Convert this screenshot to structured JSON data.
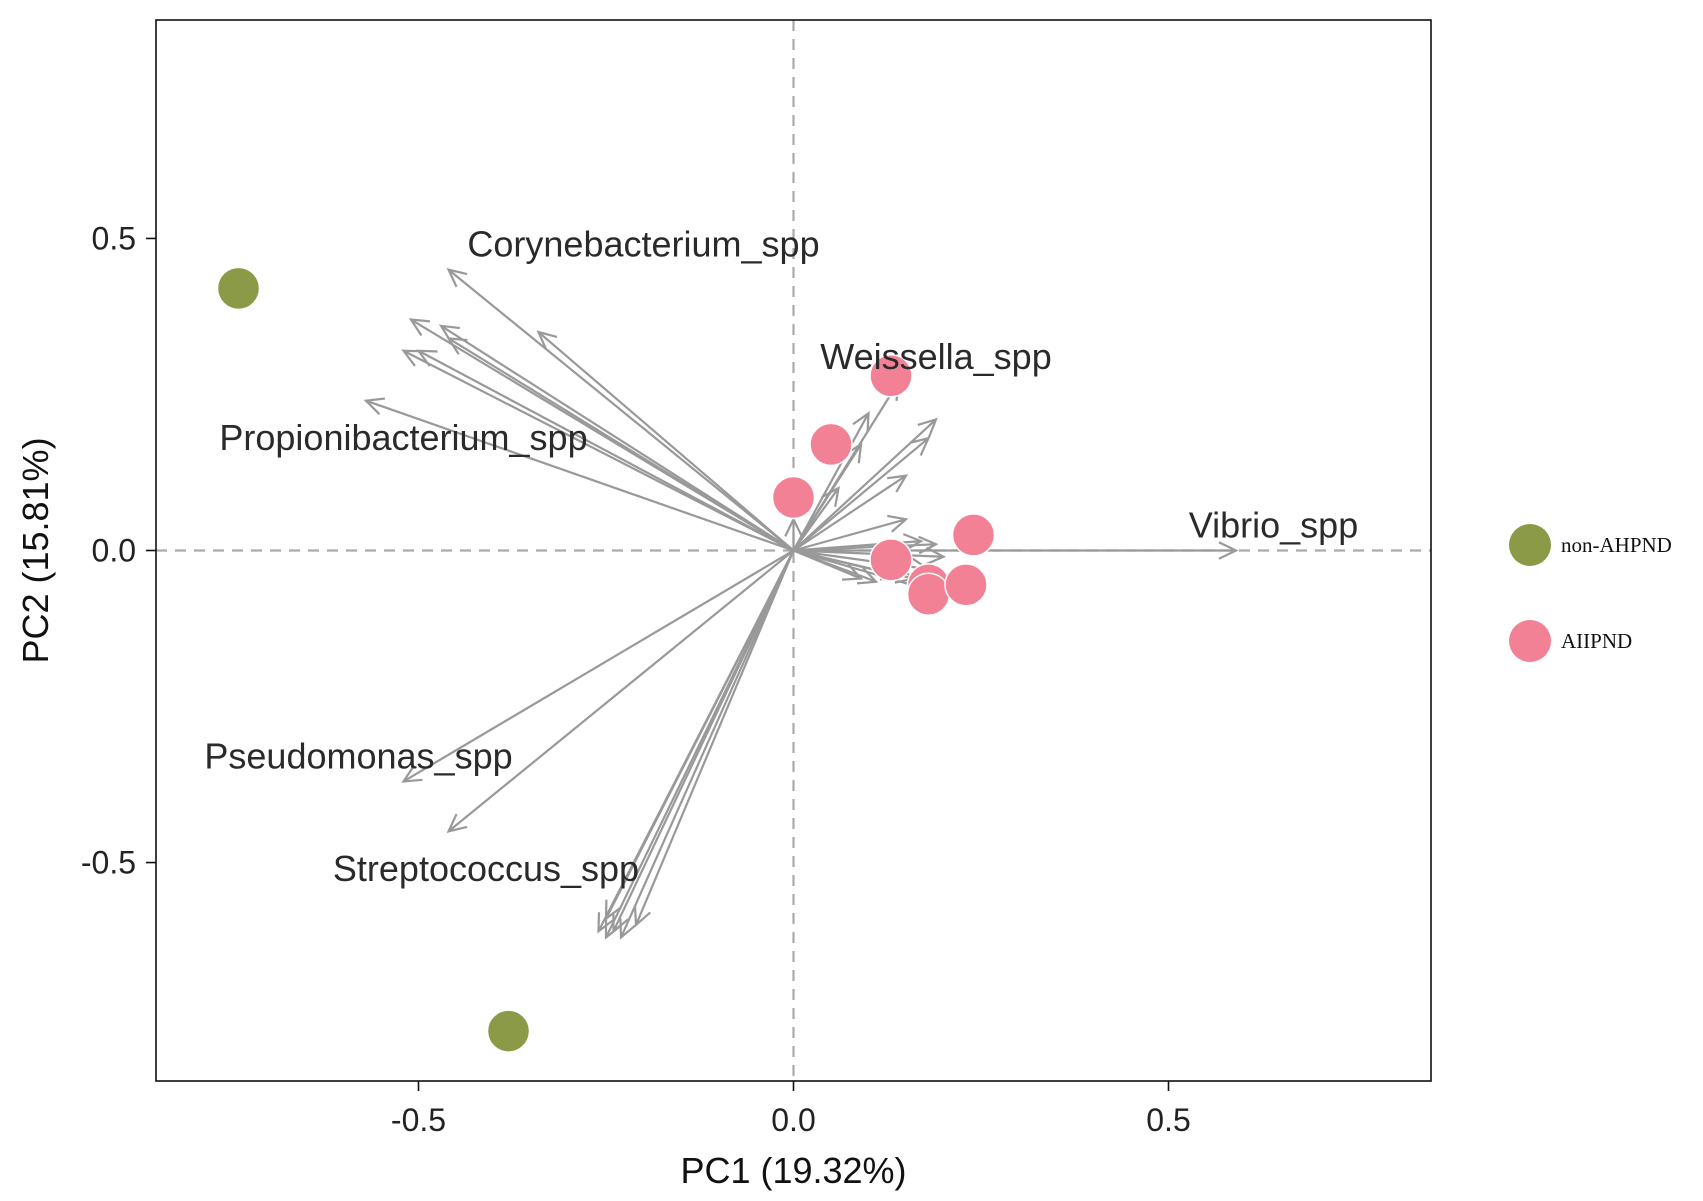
{
  "chart_data": {
    "type": "scatter",
    "subtype": "pca-biplot",
    "title": "",
    "xlabel": "PC1 (19.32%)",
    "ylabel": "PC2 (15.81%)",
    "xlim": [
      -0.85,
      0.85
    ],
    "ylim": [
      -0.85,
      0.85
    ],
    "xticks": [
      {
        "value": -0.5,
        "label": "-0.5"
      },
      {
        "value": 0.0,
        "label": "0.0"
      },
      {
        "value": 0.5,
        "label": "0.5"
      }
    ],
    "yticks": [
      {
        "value": 0.5,
        "label": "0.5"
      },
      {
        "value": 0.0,
        "label": "0.0"
      },
      {
        "value": -0.5,
        "label": "-0.5"
      }
    ],
    "grid": false,
    "reference_lines": [
      0,
      0
    ],
    "legend_position": "right",
    "groups": [
      {
        "name": "non-AHPND",
        "color": "#8b9a46",
        "points": [
          [
            -0.74,
            0.42
          ],
          [
            -0.38,
            -0.77
          ]
        ]
      },
      {
        "name": "AIIPND",
        "color": "#f28196",
        "points": [
          [
            0.13,
            0.28
          ],
          [
            0.05,
            0.17
          ],
          [
            0.0,
            0.085
          ],
          [
            0.24,
            0.025
          ],
          [
            0.13,
            -0.015
          ],
          [
            0.18,
            -0.055
          ],
          [
            0.18,
            -0.07
          ],
          [
            0.23,
            -0.055
          ]
        ]
      }
    ],
    "loadings": [
      {
        "name": "Corynebacterium_spp",
        "x": -0.46,
        "y": 0.45,
        "label_x": -0.2,
        "label_y": 0.49
      },
      {
        "name": "Weissella_spp",
        "x": 0.14,
        "y": 0.27,
        "label_x": 0.19,
        "label_y": 0.31
      },
      {
        "name": "Propionibacterium_spp",
        "x": -0.57,
        "y": 0.24,
        "label_x": -0.52,
        "label_y": 0.18
      },
      {
        "name": "Vibrio_spp",
        "x": 0.59,
        "y": 0.0,
        "label_x": 0.64,
        "label_y": 0.04
      },
      {
        "name": "Pseudomonas_spp",
        "x": -0.52,
        "y": -0.37,
        "label_x": -0.58,
        "label_y": -0.33
      },
      {
        "name": "Streptococcus_spp",
        "x": -0.46,
        "y": -0.45,
        "label_x": -0.41,
        "label_y": -0.51
      },
      {
        "name": "",
        "x": -0.51,
        "y": 0.37
      },
      {
        "name": "",
        "x": -0.47,
        "y": 0.36
      },
      {
        "name": "",
        "x": -0.52,
        "y": 0.32
      },
      {
        "name": "",
        "x": -0.5,
        "y": 0.32
      },
      {
        "name": "",
        "x": -0.46,
        "y": 0.34
      },
      {
        "name": "",
        "x": -0.34,
        "y": 0.35
      },
      {
        "name": "",
        "x": -0.26,
        "y": -0.61
      },
      {
        "name": "",
        "x": -0.25,
        "y": -0.62
      },
      {
        "name": "",
        "x": -0.24,
        "y": -0.61
      },
      {
        "name": "",
        "x": -0.23,
        "y": -0.62
      },
      {
        "name": "",
        "x": -0.21,
        "y": -0.6
      },
      {
        "name": "",
        "x": -0.25,
        "y": -0.59
      },
      {
        "name": "",
        "x": 0.1,
        "y": 0.22
      },
      {
        "name": "",
        "x": 0.19,
        "y": 0.21
      },
      {
        "name": "",
        "x": 0.18,
        "y": 0.18
      },
      {
        "name": "",
        "x": 0.15,
        "y": 0.12
      },
      {
        "name": "",
        "x": 0.09,
        "y": 0.17
      },
      {
        "name": "",
        "x": 0.06,
        "y": 0.1
      },
      {
        "name": "",
        "x": 0.15,
        "y": 0.05
      },
      {
        "name": "",
        "x": 0.19,
        "y": 0.01
      },
      {
        "name": "",
        "x": 0.17,
        "y": 0.015
      },
      {
        "name": "",
        "x": 0.2,
        "y": -0.01
      },
      {
        "name": "",
        "x": 0.18,
        "y": -0.03
      },
      {
        "name": "",
        "x": 0.16,
        "y": -0.045
      },
      {
        "name": "",
        "x": 0.11,
        "y": -0.05
      },
      {
        "name": "",
        "x": 0.09,
        "y": -0.045
      },
      {
        "name": "",
        "x": 0.2,
        "y": -0.07
      },
      {
        "name": "",
        "x": 0.14,
        "y": -0.04
      },
      {
        "name": "",
        "x": 0.0,
        "y": 0.05
      }
    ]
  }
}
